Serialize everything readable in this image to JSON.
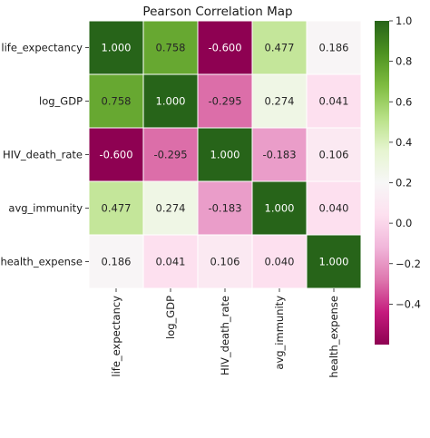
{
  "chart_data": {
    "type": "heatmap",
    "title": "Pearson Correlation Map",
    "rows": [
      "life_expectancy",
      "log_GDP",
      "HIV_death_rate",
      "avg_immunity",
      "health_expense"
    ],
    "columns": [
      "life_expectancy",
      "log_GDP",
      "HIV_death_rate",
      "avg_immunity",
      "health_expense"
    ],
    "values": [
      [
        1.0,
        0.758,
        -0.6,
        0.477,
        0.186
      ],
      [
        0.758,
        1.0,
        -0.295,
        0.274,
        0.041
      ],
      [
        -0.6,
        -0.295,
        1.0,
        -0.183,
        0.106
      ],
      [
        0.477,
        0.274,
        -0.183,
        1.0,
        0.04
      ],
      [
        0.186,
        0.041,
        0.106,
        0.04,
        1.0
      ]
    ],
    "annotations": [
      [
        "1.000",
        "0.758",
        "-0.600",
        "0.477",
        "0.186"
      ],
      [
        "0.758",
        "1.000",
        "-0.295",
        "0.274",
        "0.041"
      ],
      [
        "-0.600",
        "-0.295",
        "1.000",
        "-0.183",
        "0.106"
      ],
      [
        "0.477",
        "0.274",
        "-0.183",
        "1.000",
        "0.040"
      ],
      [
        "0.186",
        "0.041",
        "0.106",
        "0.040",
        "1.000"
      ]
    ],
    "colormap": "PiYG",
    "vmin": -0.6,
    "vmax": 1.0,
    "colorbar_ticks": [
      1.0,
      0.8,
      0.6,
      0.4,
      0.2,
      0.0,
      -0.2,
      -0.4
    ],
    "colorbar_tick_labels": [
      "1.0",
      "0.8",
      "0.6",
      "0.4",
      "0.2",
      "0.0",
      "−0.2",
      "−0.4"
    ],
    "cell_border_color": "#ffffff",
    "legend_position": "right"
  }
}
